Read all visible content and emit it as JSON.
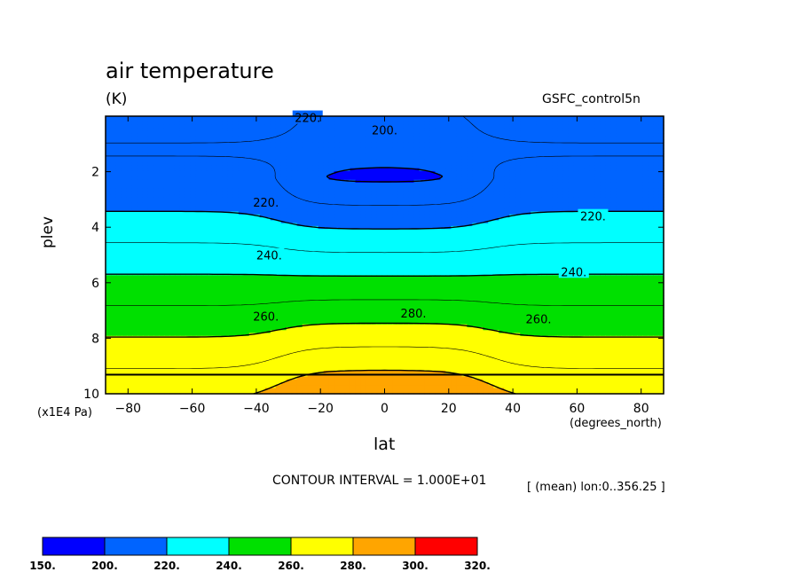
{
  "title": "air temperature",
  "units": "(K)",
  "source": "GSFC_control5n",
  "contour_interval": "CONTOUR INTERVAL = 1.000E+01",
  "mean_note": "[ (mean) lon:0..356.25 ]",
  "colors": {
    "band_150_200": "#0000ff",
    "band_200_220": "#0064ff",
    "band_220_240": "#00ffff",
    "band_240_260": "#00e000",
    "band_260_280": "#ffff00",
    "band_280_300": "#ffa500",
    "band_300_320": "#ff0000"
  },
  "chart_data": {
    "type": "heatmap",
    "title": "air temperature",
    "subtitle": "(K)",
    "xlabel": "lat",
    "x_units": "(degrees_north)",
    "ylabel": "plev",
    "y_units": "(x1E4 Pa)",
    "xlim": [
      -87,
      87
    ],
    "ylim": [
      0,
      10
    ],
    "y_inverted": true,
    "x_ticks": [
      -80,
      -60,
      -40,
      -20,
      0,
      20,
      40,
      60,
      80
    ],
    "y_ticks": [
      2,
      4,
      6,
      8,
      10
    ],
    "contour_interval": 10,
    "contour_labels": [
      {
        "text": "220.",
        "lat": -24,
        "plev": 0.05
      },
      {
        "text": "200.",
        "lat": 0,
        "plev": 0.5
      },
      {
        "text": "220.",
        "lat": -37,
        "plev": 3.1
      },
      {
        "text": "220.",
        "lat": 65,
        "plev": 3.6
      },
      {
        "text": "240.",
        "lat": -36,
        "plev": 5.0
      },
      {
        "text": "240.",
        "lat": 59,
        "plev": 5.6
      },
      {
        "text": "260.",
        "lat": -37,
        "plev": 7.2
      },
      {
        "text": "260.",
        "lat": 48,
        "plev": 7.3
      },
      {
        "text": "280.",
        "lat": 9,
        "plev": 7.1
      }
    ],
    "colorbar": {
      "levels": [
        "150.",
        "200.",
        "220.",
        "240.",
        "260.",
        "280.",
        "300.",
        "320."
      ],
      "colors": [
        "#0000ff",
        "#0064ff",
        "#00ffff",
        "#00e000",
        "#ffff00",
        "#ffa500",
        "#ff0000"
      ]
    }
  }
}
